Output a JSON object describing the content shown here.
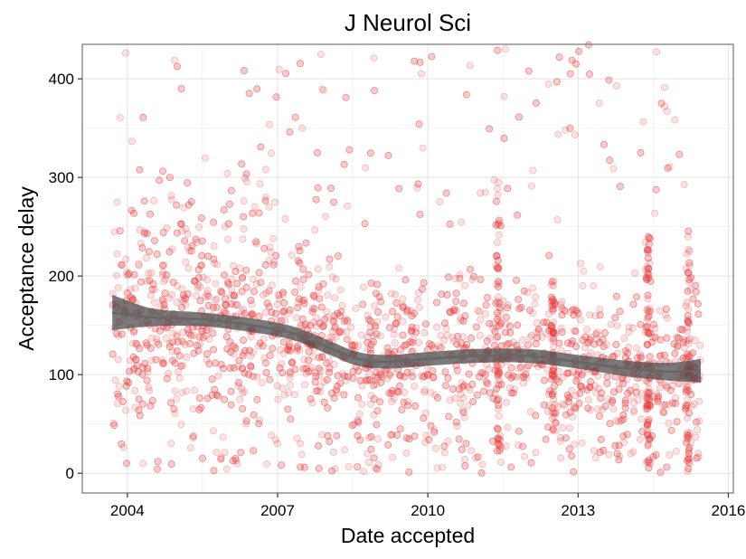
{
  "chart_data": {
    "type": "scatter",
    "title": "J Neurol Sci",
    "xlabel": "Date accepted",
    "ylabel": "Acceptance delay",
    "x_unit": "year",
    "xlim": [
      2003.1,
      2016.1
    ],
    "ylim": [
      -20,
      435
    ],
    "x_ticks": [
      2004,
      2007,
      2010,
      2013,
      2016
    ],
    "x_tick_labels": [
      "2004",
      "2007",
      "2010",
      "2013",
      "2016"
    ],
    "y_ticks": [
      0,
      100,
      200,
      300,
      400
    ],
    "y_tick_labels": [
      "0",
      "100",
      "200",
      "300",
      "400"
    ],
    "grid": true,
    "point_color": "#e8393a",
    "smooth_color": "#666666",
    "points": {
      "x_range": [
        2003.7,
        2015.45
      ],
      "y_range": [
        0,
        435
      ],
      "approx_count": 3000,
      "clusters": [
        {
          "x_center": 2011.4,
          "y_range": [
            20,
            300
          ]
        },
        {
          "x_center": 2012.5,
          "y_range": [
            40,
            200
          ]
        },
        {
          "x_center": 2014.4,
          "y_range": [
            0,
            240
          ]
        },
        {
          "x_center": 2015.2,
          "y_range": [
            0,
            250
          ]
        }
      ]
    },
    "smooth": {
      "x": [
        2003.7,
        2004.5,
        2005.5,
        2006.5,
        2007.3,
        2008.0,
        2008.6,
        2009.2,
        2010.0,
        2011.0,
        2012.0,
        2013.0,
        2014.0,
        2014.8,
        2015.45
      ],
      "y": [
        163,
        158,
        156,
        150,
        142,
        128,
        116,
        113,
        116,
        119,
        119,
        113,
        106,
        103,
        104
      ],
      "band_halfwidth": [
        18,
        9,
        7,
        7,
        7,
        7,
        7,
        7,
        7,
        7,
        7,
        7,
        8,
        9,
        12
      ]
    }
  }
}
